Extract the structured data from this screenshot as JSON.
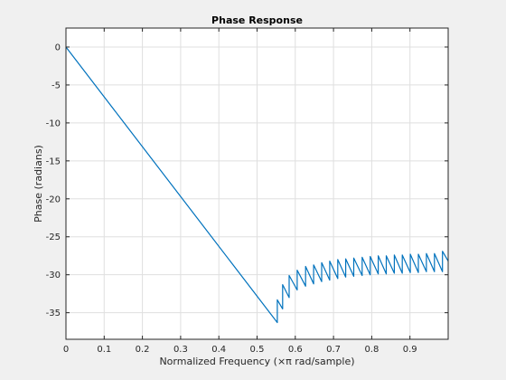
{
  "chart_data": {
    "type": "line",
    "title": "Phase Response",
    "xlabel": "Normalized Frequency  (×π rad/sample)",
    "ylabel": "Phase (radians)",
    "xlim": [
      0,
      1
    ],
    "ylim": [
      -38.5,
      2.5
    ],
    "xticks": [
      0,
      0.1,
      0.2,
      0.3,
      0.4,
      0.5,
      0.6,
      0.7,
      0.8,
      0.9
    ],
    "xtick_labels": [
      "0",
      "0.1",
      "0.2",
      "0.3",
      "0.4",
      "0.5",
      "0.6",
      "0.7",
      "0.8",
      "0.9"
    ],
    "yticks": [
      0,
      -5,
      -10,
      -15,
      -20,
      -25,
      -30,
      -35
    ],
    "ytick_labels": [
      "0",
      "-5",
      "-10",
      "-15",
      "-20",
      "-25",
      "-30",
      "-35"
    ],
    "grid": true,
    "line_color": "#0072bd",
    "series": [
      {
        "x": [
          0,
          0.553,
          0.553,
          0.567,
          0.567,
          0.584,
          0.584,
          0.605,
          0.605,
          0.627,
          0.627,
          0.648,
          0.648,
          0.669,
          0.669,
          0.69,
          0.69,
          0.711,
          0.711,
          0.732,
          0.732,
          0.753,
          0.753,
          0.775,
          0.775,
          0.796,
          0.796,
          0.817,
          0.817,
          0.838,
          0.838,
          0.859,
          0.859,
          0.88,
          0.88,
          0.901,
          0.901,
          0.922,
          0.922,
          0.943,
          0.943,
          0.964,
          0.964,
          0.985,
          0.985,
          1.0
        ],
        "y": [
          0,
          -36.3,
          -33.3,
          -34.5,
          -31.3,
          -33.0,
          -30.1,
          -32.0,
          -29.4,
          -31.5,
          -28.9,
          -31.2,
          -28.7,
          -30.9,
          -28.4,
          -30.7,
          -28.2,
          -30.5,
          -28.0,
          -30.3,
          -27.9,
          -30.2,
          -27.8,
          -30.1,
          -27.7,
          -30.0,
          -27.6,
          -29.9,
          -27.5,
          -29.9,
          -27.5,
          -29.8,
          -27.4,
          -29.8,
          -27.4,
          -29.7,
          -27.3,
          -29.7,
          -27.3,
          -29.6,
          -27.2,
          -29.6,
          -27.2,
          -29.6,
          -26.9,
          -28.2
        ]
      }
    ]
  }
}
